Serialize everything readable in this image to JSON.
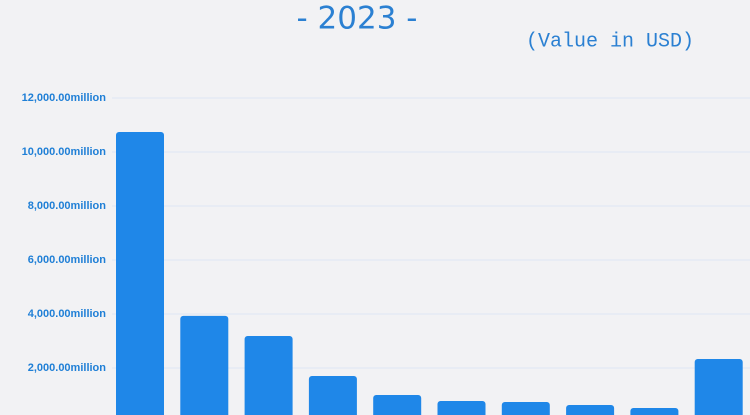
{
  "chart_data": {
    "type": "bar",
    "title": "- 2023 -",
    "subtitle": "(Value in USD)",
    "categories": [
      null,
      null,
      null,
      null,
      null,
      null,
      null,
      null,
      null,
      null
    ],
    "values": [
      10740,
      3930,
      3185,
      1704,
      1000,
      778,
      741,
      630,
      519,
      2333
    ],
    "color": "#1f87e8",
    "ylim": [
      0,
      12000
    ],
    "yticks": [
      {
        "value": 2000,
        "label": "2,000.00million"
      },
      {
        "value": 4000,
        "label": "4,000.00million"
      },
      {
        "value": 6000,
        "label": "6,000.00million"
      },
      {
        "value": 8000,
        "label": "8,000.00million"
      },
      {
        "value": 10000,
        "label": "10,000.00million"
      },
      {
        "value": 12000,
        "label": "12,000.00million"
      }
    ],
    "grid": true
  }
}
